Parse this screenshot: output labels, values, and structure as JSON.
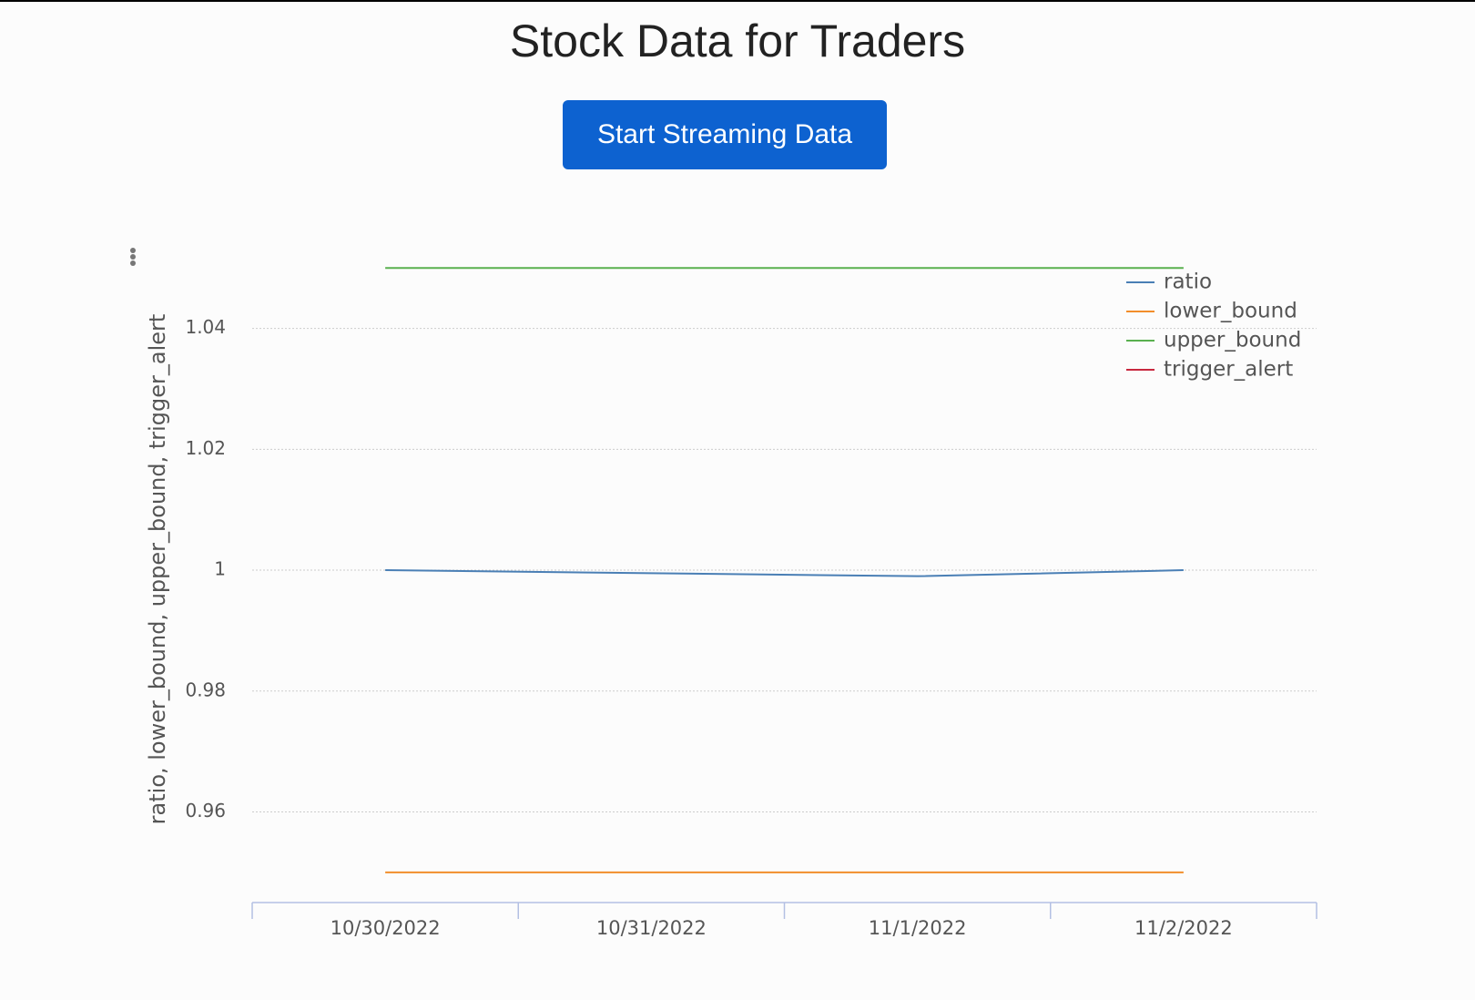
{
  "header": {
    "title": "Stock Data for Traders"
  },
  "button": {
    "label": "Start Streaming Data"
  },
  "chart_data": {
    "type": "line",
    "y_label": "ratio, lower_bound, upper_bound, trigger_alert",
    "categories": [
      "10/30/2022",
      "10/31/2022",
      "11/1/2022",
      "11/2/2022"
    ],
    "series": [
      {
        "name": "ratio",
        "color": "#4a7fb5",
        "values": [
          1.0,
          0.9995,
          0.999,
          1.0
        ]
      },
      {
        "name": "lower_bound",
        "color": "#f28e2b",
        "values": [
          0.95,
          0.95,
          0.95,
          0.95
        ]
      },
      {
        "name": "upper_bound",
        "color": "#59b04f",
        "values": [
          1.05,
          1.05,
          1.05,
          1.05
        ]
      },
      {
        "name": "trigger_alert",
        "color": "#c8283f",
        "values": [
          null,
          null,
          null,
          null
        ]
      }
    ],
    "ylim": [
      0.945,
      1.052
    ],
    "yticks": [
      0.96,
      0.98,
      1,
      1.02,
      1.04
    ],
    "grid": true
  }
}
